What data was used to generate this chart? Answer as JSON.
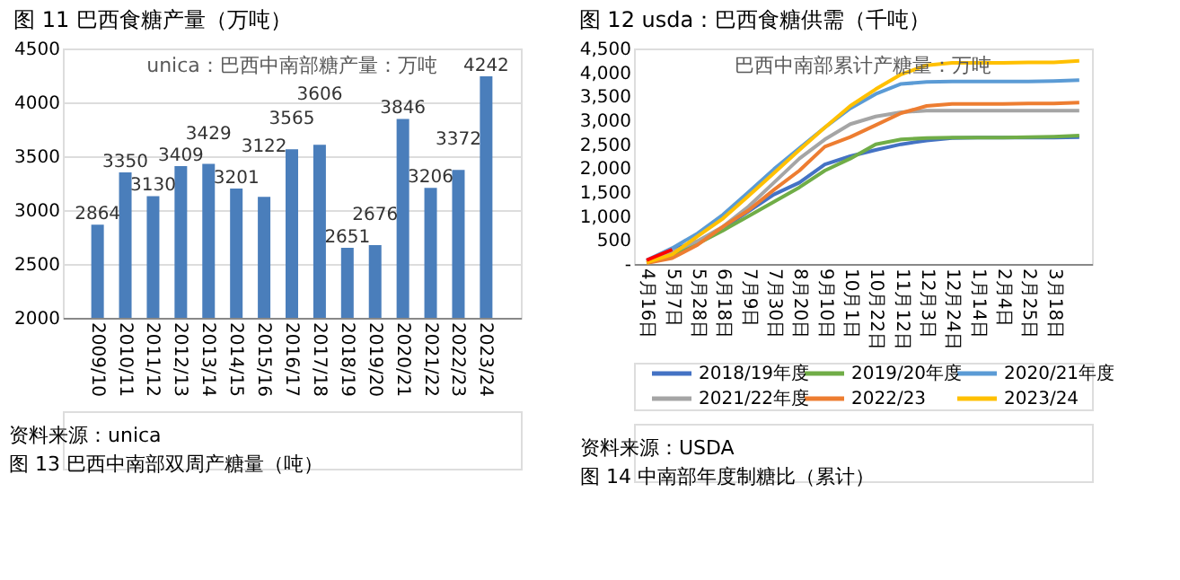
{
  "chart_data": [
    {
      "type": "bar",
      "title": "图 11 巴西食糖产量（万吨）",
      "subtitle": "unica：巴西中南部糖产量：万吨",
      "categories": [
        "2009/10",
        "2010/11",
        "2011/12",
        "2012/13",
        "2013/14",
        "2014/15",
        "2015/16",
        "2016/17",
        "2017/18",
        "2018/19",
        "2019/20",
        "2020/21",
        "2021/22",
        "2022/23",
        "2023/24"
      ],
      "values": [
        2864,
        3350,
        3130,
        3409,
        3429,
        3201,
        3122,
        3565,
        3606,
        2651,
        2676,
        3846,
        3206,
        3372,
        4242
      ],
      "color": "#4a7ebb",
      "data_labels": true,
      "ylim": [
        2000,
        4500
      ],
      "yticks": [
        2000,
        2500,
        3000,
        3500,
        4000,
        4500
      ],
      "grid": "y",
      "annotations": [
        "资料来源：unica",
        "图 13 巴西中南部双周产糖量（吨）"
      ]
    },
    {
      "type": "line",
      "title": "图 12 usda：巴西食糖供需（千吨）",
      "subtitle": "巴西中南部累计产糖量：万吨",
      "categories": [
        "4月16日",
        "5月7日",
        "5月28日",
        "6月18日",
        "7月9日",
        "7月30日",
        "8月20日",
        "9月10日",
        "10月1日",
        "10月22日",
        "11月12日",
        "12月3日",
        "12月24日",
        "1月14日",
        "2月4日",
        "2月25日",
        "3月18日",
        null
      ],
      "series": [
        {
          "name": "2018/19年度",
          "color": "#4472c4",
          "values": [
            60,
            300,
            470,
            750,
            1100,
            1450,
            1700,
            2080,
            2250,
            2380,
            2500,
            2580,
            2630,
            2640,
            2640,
            2640,
            2640,
            2650
          ]
        },
        {
          "name": "2019/20年度",
          "color": "#70ad47",
          "values": [
            20,
            180,
            420,
            700,
            1000,
            1300,
            1600,
            1950,
            2200,
            2500,
            2600,
            2630,
            2640,
            2640,
            2640,
            2650,
            2660,
            2680
          ]
        },
        {
          "name": "2020/21年度",
          "color": "#5b9bd5",
          "values": [
            80,
            330,
            640,
            1030,
            1500,
            1980,
            2420,
            2850,
            3250,
            3550,
            3760,
            3800,
            3810,
            3810,
            3810,
            3810,
            3820,
            3840
          ]
        },
        {
          "name": "2021/22年度",
          "color": "#a5a5a5",
          "values": [
            50,
            250,
            480,
            780,
            1200,
            1700,
            2200,
            2600,
            2920,
            3080,
            3170,
            3200,
            3200,
            3200,
            3200,
            3200,
            3200,
            3200
          ]
        },
        {
          "name": "2022/23",
          "color": "#ed7d31",
          "values": [
            20,
            120,
            400,
            780,
            1120,
            1550,
            1950,
            2450,
            2650,
            2900,
            3150,
            3300,
            3340,
            3340,
            3340,
            3350,
            3350,
            3370
          ]
        },
        {
          "name": "2023/24",
          "color": "#ffc000",
          "values": [
            30,
            200,
            580,
            950,
            1420,
            1900,
            2380,
            2850,
            3300,
            3650,
            3960,
            4150,
            4200,
            4200,
            4200,
            4210,
            4210,
            4240
          ]
        },
        {
          "color": "#ff0000",
          "values": [
            80,
            300,
            null,
            null,
            null,
            null,
            null,
            null,
            null,
            null,
            null,
            null,
            null,
            null,
            null,
            null,
            null,
            null
          ]
        }
      ],
      "ylim": [
        0,
        4500
      ],
      "yticks": [
        {
          "value": 0,
          "label": "-"
        },
        500,
        {
          "value": 1000,
          "label": "1,000"
        },
        {
          "value": 1500,
          "label": "1,500"
        },
        {
          "value": 2000,
          "label": "2,000"
        },
        {
          "value": 2500,
          "label": "2,500"
        },
        {
          "value": 3000,
          "label": "3,000"
        },
        {
          "value": 3500,
          "label": "3,500"
        },
        {
          "value": 4000,
          "label": "4,000"
        },
        {
          "value": 4500,
          "label": "4,500"
        }
      ],
      "grid": false,
      "legend": "bottom",
      "marker": "none",
      "line_style": "solid",
      "annotations": [
        "资料来源：USDA",
        "图 14 中南部年度制糖比（累计）"
      ]
    }
  ]
}
